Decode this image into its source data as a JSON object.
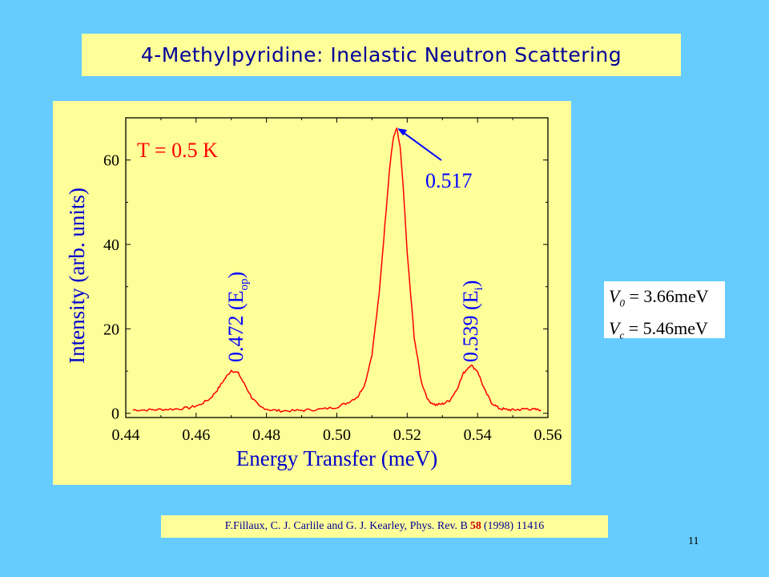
{
  "slide": {
    "title": "4-Methylpyridine: Inelastic Neutron Scattering",
    "number": "11",
    "citation": {
      "text_before": "F.Fillaux, C. J. Carlile and G. J. Kearley, Phys. Rev. B",
      "volume": "58",
      "text_after": "(1998) 11416"
    },
    "constants": [
      {
        "symbol": "V",
        "subscript": "0",
        "rest": " = 3.66meV"
      },
      {
        "symbol": "V",
        "subscript": "c",
        "rest": " = 5.46meV"
      }
    ]
  },
  "chart_data": {
    "type": "line",
    "title": "",
    "xlabel": "Energy Transfer (meV)",
    "ylabel": "Intensity (arb. units)",
    "xlim": [
      0.44,
      0.56
    ],
    "ylim": [
      -1,
      70
    ],
    "xticks": [
      0.44,
      0.46,
      0.48,
      0.5,
      0.52,
      0.54,
      0.56
    ],
    "xtick_labels": [
      "0.44",
      "0.46",
      "0.48",
      "0.50",
      "0.52",
      "0.54",
      "0.56"
    ],
    "yticks": [
      0,
      20,
      40,
      60
    ],
    "ytick_labels": [
      "0",
      "20",
      "40",
      "60"
    ],
    "grid": false,
    "series": [
      {
        "color": "#ff0000",
        "x": [
          0.442,
          0.446,
          0.45,
          0.454,
          0.458,
          0.461,
          0.464,
          0.466,
          0.468,
          0.47,
          0.472,
          0.474,
          0.476,
          0.478,
          0.481,
          0.484,
          0.488,
          0.492,
          0.496,
          0.5,
          0.503,
          0.506,
          0.508,
          0.51,
          0.512,
          0.514,
          0.515,
          0.516,
          0.517,
          0.518,
          0.519,
          0.52,
          0.522,
          0.524,
          0.526,
          0.528,
          0.53,
          0.532,
          0.534,
          0.536,
          0.538,
          0.54,
          0.542,
          0.544,
          0.546,
          0.548,
          0.55,
          0.552,
          0.554,
          0.556,
          0.558
        ],
        "y": [
          0.8,
          0.8,
          0.9,
          1.0,
          1.3,
          2.0,
          3.5,
          5.5,
          8.0,
          10.2,
          9.5,
          6.5,
          3.5,
          1.6,
          0.8,
          0.6,
          0.6,
          0.8,
          1.0,
          1.5,
          2.5,
          4.0,
          7.0,
          14.0,
          28.0,
          48.0,
          58.0,
          65.0,
          67.5,
          63.0,
          52.0,
          38.0,
          18.0,
          7.5,
          3.0,
          2.0,
          2.2,
          3.0,
          5.5,
          9.5,
          11.5,
          10.0,
          5.5,
          2.5,
          1.2,
          0.9,
          0.8,
          0.9,
          1.1,
          0.9,
          0.8
        ]
      }
    ],
    "annotations": [
      {
        "text": "T = 0.5 K",
        "color": "#ff0000"
      },
      {
        "text": "0.517",
        "color": "#0000ff",
        "x": 0.517,
        "y": 67.5
      },
      {
        "text": "0.472 (E",
        "sub": "op",
        "close": ")",
        "color": "#0000ff",
        "x": 0.472
      },
      {
        "text": "0.539 (E",
        "sub": "i",
        "close": ")",
        "color": "#0000ff",
        "x": 0.539
      }
    ]
  }
}
